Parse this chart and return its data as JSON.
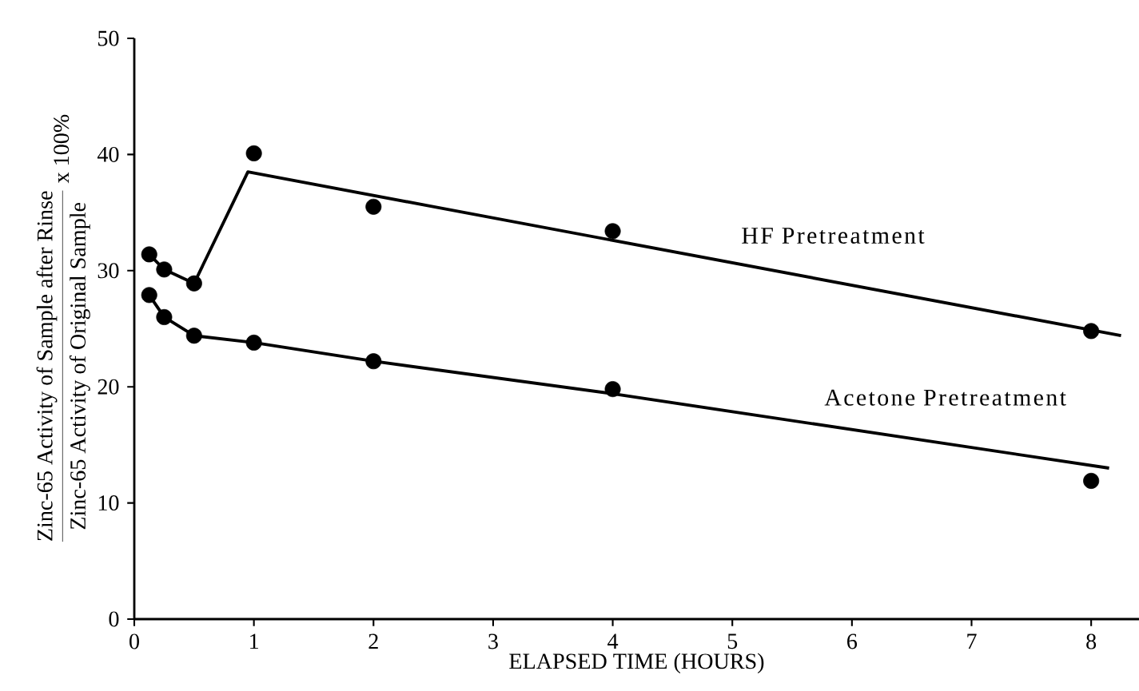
{
  "chart_data": {
    "type": "scatter",
    "xlabel": "ELAPSED TIME (HOURS)",
    "ylabel": "\\frac{\\mbox{Zinc-65 Activity of Sample after Rinse}}{\\mbox{Zinc-65 Activity of Original Sample}}\\ \\mbox{x 100\\%}",
    "xlim": [
      0,
      8.4
    ],
    "ylim": [
      0,
      50
    ],
    "xticks": [
      0,
      1,
      2,
      3,
      4,
      5,
      6,
      7,
      8
    ],
    "yticks": [
      0,
      10,
      20,
      30,
      40,
      50
    ],
    "line_style": "solid",
    "grid": false,
    "series": [
      {
        "color": "#000000",
        "marker": "circle",
        "x": [
          0.125,
          0.25,
          0.5,
          1,
          2,
          4,
          8
        ],
        "values": [
          31.4,
          30.1,
          28.9,
          40.1,
          35.5,
          33.4,
          24.8
        ]
      },
      {
        "color": "#000000",
        "marker": "circle",
        "x": [
          0.125,
          0.25,
          0.5,
          1,
          2,
          4,
          8
        ],
        "values": [
          27.9,
          26.0,
          24.4,
          23.8,
          22.2,
          19.8,
          11.9
        ]
      },
      {
        "type": "line",
        "name": "HF Pretreatment",
        "marker": "none",
        "color": "#000000",
        "x": [
          0.125,
          0.25,
          0.5,
          0.95,
          8.25
        ],
        "values": [
          31.4,
          30.1,
          28.9,
          38.5,
          24.4
        ]
      },
      {
        "type": "line",
        "name": "Acetone Pretreatment",
        "marker": "none",
        "color": "#000000",
        "x": [
          0.125,
          0.25,
          0.5,
          1,
          2,
          4,
          8.15
        ],
        "values": [
          27.9,
          26.0,
          24.4,
          23.8,
          22.2,
          19.4,
          13.0
        ]
      }
    ]
  }
}
